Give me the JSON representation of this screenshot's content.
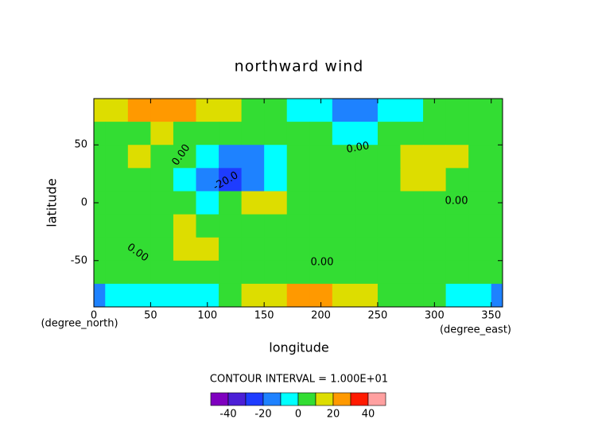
{
  "chart_data": {
    "type": "heatmap",
    "title": "northward wind",
    "x_label": "longitude",
    "y_label": "latitude",
    "x_unit": "(degree_east)",
    "y_unit": "(degree_north)",
    "xlim": [
      0,
      360
    ],
    "ylim": [
      -90,
      90
    ],
    "xticks": [
      0,
      50,
      100,
      150,
      200,
      250,
      300,
      350
    ],
    "yticks": [
      -50,
      0,
      50
    ],
    "x": [
      0,
      20,
      40,
      60,
      80,
      100,
      120,
      140,
      160,
      180,
      200,
      220,
      240,
      260,
      280,
      300,
      320,
      340,
      360
    ],
    "y": [
      80,
      60,
      40,
      20,
      0,
      -20,
      -40,
      -60,
      -80
    ],
    "z": [
      [
        12,
        15,
        22,
        25,
        25,
        18,
        12,
        8,
        3,
        -2,
        -8,
        -15,
        -15,
        -8,
        -3,
        2,
        5,
        5,
        5
      ],
      [
        5,
        6,
        8,
        10,
        8,
        5,
        3,
        2,
        2,
        3,
        3,
        -2,
        -3,
        0,
        3,
        5,
        5,
        5,
        5
      ],
      [
        5,
        8,
        15,
        8,
        3,
        -5,
        -15,
        -18,
        -5,
        3,
        5,
        5,
        5,
        8,
        15,
        15,
        12,
        5,
        5
      ],
      [
        5,
        5,
        5,
        3,
        -5,
        -12,
        -30,
        -15,
        -2,
        5,
        5,
        5,
        5,
        5,
        12,
        15,
        5,
        5,
        5
      ],
      [
        3,
        5,
        5,
        5,
        3,
        -2,
        5,
        15,
        15,
        8,
        5,
        5,
        5,
        5,
        5,
        5,
        3,
        2,
        2
      ],
      [
        5,
        5,
        5,
        8,
        12,
        8,
        5,
        8,
        5,
        5,
        5,
        5,
        5,
        5,
        5,
        5,
        5,
        5,
        5
      ],
      [
        5,
        5,
        5,
        8,
        15,
        15,
        5,
        5,
        5,
        5,
        5,
        5,
        5,
        5,
        5,
        5,
        5,
        5,
        5
      ],
      [
        2,
        0,
        2,
        5,
        5,
        5,
        5,
        5,
        5,
        5,
        5,
        5,
        5,
        5,
        5,
        5,
        5,
        5,
        5
      ],
      [
        -12,
        -8,
        -5,
        -5,
        -5,
        -2,
        5,
        12,
        15,
        22,
        25,
        15,
        12,
        5,
        3,
        2,
        -3,
        -5,
        -12
      ]
    ],
    "levels": [
      -50,
      -40,
      -30,
      -20,
      -10,
      0,
      10,
      20,
      30,
      40,
      50
    ],
    "colors": [
      "#7f00bf",
      "#4b1fd6",
      "#1e3cff",
      "#1e82ff",
      "#00ffff",
      "#33dd33",
      "#dddd00",
      "#ff9900",
      "#ff1a00",
      "#ffa0a0"
    ],
    "colorbar_ticks": [
      -40,
      -20,
      0,
      20,
      40
    ],
    "contour_interval": "CONTOUR INTERVAL = 1.000E+01",
    "contour_labels": [
      "0.00",
      "0.00",
      "-20.0",
      "0.00",
      "0.00",
      "0.00"
    ]
  }
}
